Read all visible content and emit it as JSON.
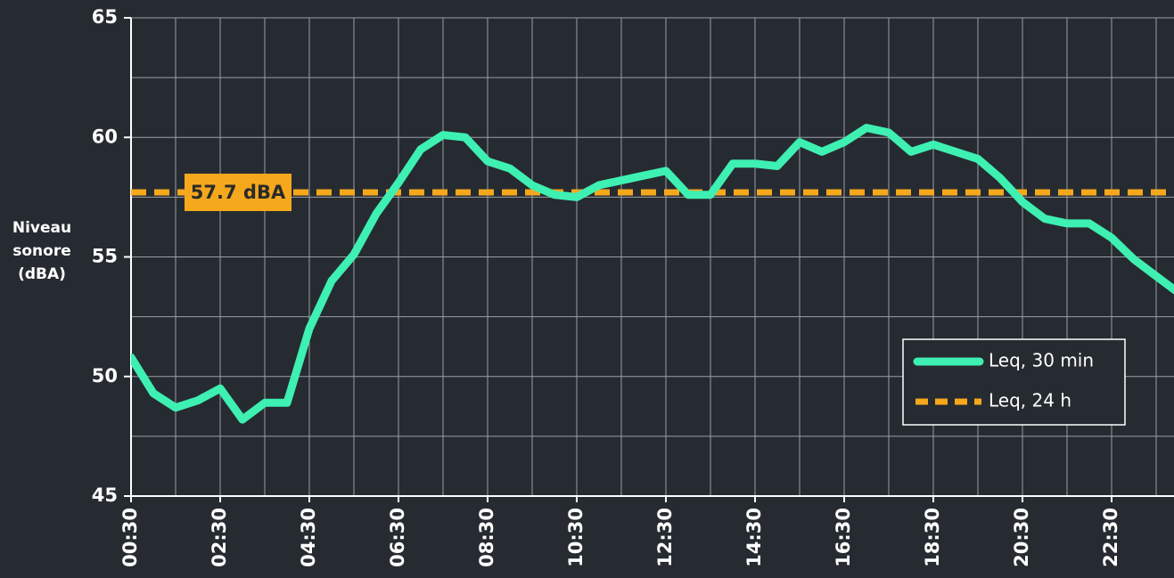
{
  "chart_data": {
    "type": "line",
    "y_label": [
      "Niveau",
      "sonore",
      "(dBA)"
    ],
    "categories": [
      "00:30",
      null,
      null,
      null,
      "02:30",
      null,
      null,
      null,
      "04:30",
      null,
      null,
      null,
      "06:30",
      null,
      null,
      null,
      "08:30",
      null,
      null,
      null,
      "10:30",
      null,
      null,
      null,
      "12:30",
      null,
      null,
      null,
      "14:30",
      null,
      null,
      null,
      "16:30",
      null,
      null,
      null,
      "18:30",
      null,
      null,
      null,
      "20:30",
      null,
      null,
      null,
      "22:30",
      null,
      null,
      null
    ],
    "series": [
      {
        "name": "Leq, 30 min",
        "color": "#3ef0b2",
        "values": [
          50.8,
          49.3,
          48.7,
          49.0,
          49.5,
          48.2,
          48.9,
          48.9,
          52.0,
          54.0,
          55.1,
          56.8,
          58.1,
          59.5,
          60.1,
          60.0,
          59.0,
          58.7,
          58.0,
          57.6,
          57.5,
          58.0,
          58.2,
          58.4,
          58.6,
          57.6,
          57.6,
          58.9,
          58.9,
          58.8,
          59.8,
          59.4,
          59.8,
          60.4,
          60.2,
          59.4,
          59.7,
          59.4,
          59.1,
          58.3,
          57.3,
          56.6,
          56.4,
          56.4,
          55.8,
          54.9,
          54.2,
          53.5
        ]
      }
    ],
    "reference": {
      "name": "Leq, 24 h",
      "value": 57.7,
      "label": "57.7 dBA",
      "color": "#f5a81c"
    },
    "ylim": [
      45,
      65
    ],
    "yticks": [
      45,
      50,
      55,
      60,
      65
    ],
    "ygrid": [
      45,
      47.5,
      50,
      52.5,
      55,
      57.5,
      60,
      62.5,
      65
    ],
    "grid": true,
    "legend": "right"
  }
}
